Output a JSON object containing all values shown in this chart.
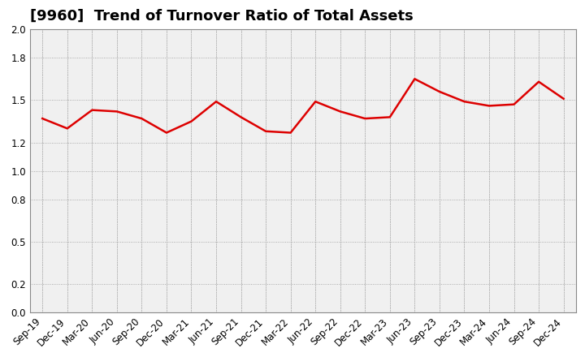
{
  "title": "[9960]  Trend of Turnover Ratio of Total Assets",
  "x_labels": [
    "Sep-19",
    "Dec-19",
    "Mar-20",
    "Jun-20",
    "Sep-20",
    "Dec-20",
    "Mar-21",
    "Jun-21",
    "Sep-21",
    "Dec-21",
    "Mar-22",
    "Jun-22",
    "Sep-22",
    "Dec-22",
    "Mar-23",
    "Jun-23",
    "Sep-23",
    "Dec-23",
    "Mar-24",
    "Jun-24",
    "Sep-24",
    "Dec-24"
  ],
  "y_values": [
    1.37,
    1.3,
    1.43,
    1.42,
    1.37,
    1.27,
    1.35,
    1.49,
    1.38,
    1.28,
    1.27,
    1.49,
    1.42,
    1.37,
    1.38,
    1.65,
    1.56,
    1.49,
    1.46,
    1.47,
    1.63,
    1.51
  ],
  "y_min": 0.0,
  "y_max": 2.0,
  "y_ticks": [
    0.0,
    0.2,
    0.5,
    0.8,
    1.0,
    1.2,
    1.5,
    1.8,
    2.0
  ],
  "line_color": "#dd0000",
  "line_width": 1.8,
  "background_color": "#ffffff",
  "plot_bg_color": "#f0f0f0",
  "grid_color": "#999999",
  "title_fontsize": 13,
  "tick_fontsize": 8.5
}
